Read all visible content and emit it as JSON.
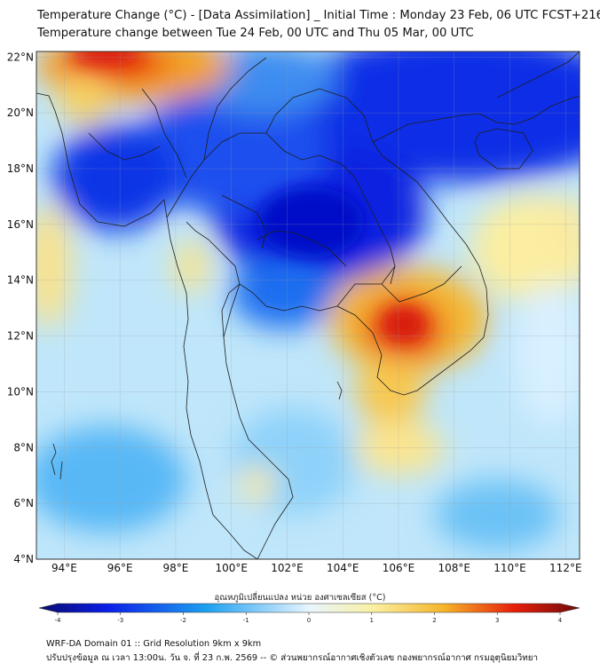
{
  "header": {
    "title_line1": "Temperature Change (°C) - [Data Assimilation] _ Initial Time : Monday 23 Feb, 06 UTC FCST+216",
    "title_line2": "Temperature change between Tue 24 Feb, 00 UTC and Thu 05 Mar, 00 UTC"
  },
  "map": {
    "lon_range": [
      93,
      112.5
    ],
    "lat_range": [
      4,
      22.2
    ],
    "lon_ticks": [
      "94°E",
      "96°E",
      "98°E",
      "100°E",
      "102°E",
      "104°E",
      "106°E",
      "108°E",
      "110°E",
      "112°E"
    ],
    "lat_ticks": [
      "22°N",
      "20°N",
      "18°N",
      "16°N",
      "14°N",
      "12°N",
      "10°N",
      "8°N",
      "6°N",
      "4°N"
    ],
    "gridlines": true
  },
  "colorbar": {
    "label": "อุณหภูมิเปลี่ยนแปลง หน่วย องศาเซลเซียส (°C)",
    "ticks": [
      "-4",
      "-3",
      "-2",
      "-1",
      "0",
      "1",
      "2",
      "3",
      "4"
    ],
    "range": [
      -4,
      4
    ],
    "colors": {
      "cold_extreme": "#0a0a6e",
      "cold": "#0a1ee6",
      "cool": "#1ea0f0",
      "neutral": "#e8f6ff",
      "mild_warm": "#faf0a0",
      "warm": "#f5b428",
      "hot": "#e61e0a",
      "hot_extreme": "#6e0a0a"
    }
  },
  "footer": {
    "line1": "WRF-DA Domain 01 :: Grid Resolution 9km x 9km",
    "line2": "ปรับปรุงข้อมูล ณ เวลา 13:00น. วัน จ. ที่ 23 ก.พ. 2569 -- © ส่วนพยากรณ์อากาศเชิงตัวเลข กองพยากรณ์อากาศ กรมอุตุนิยมวิทยา"
  }
}
